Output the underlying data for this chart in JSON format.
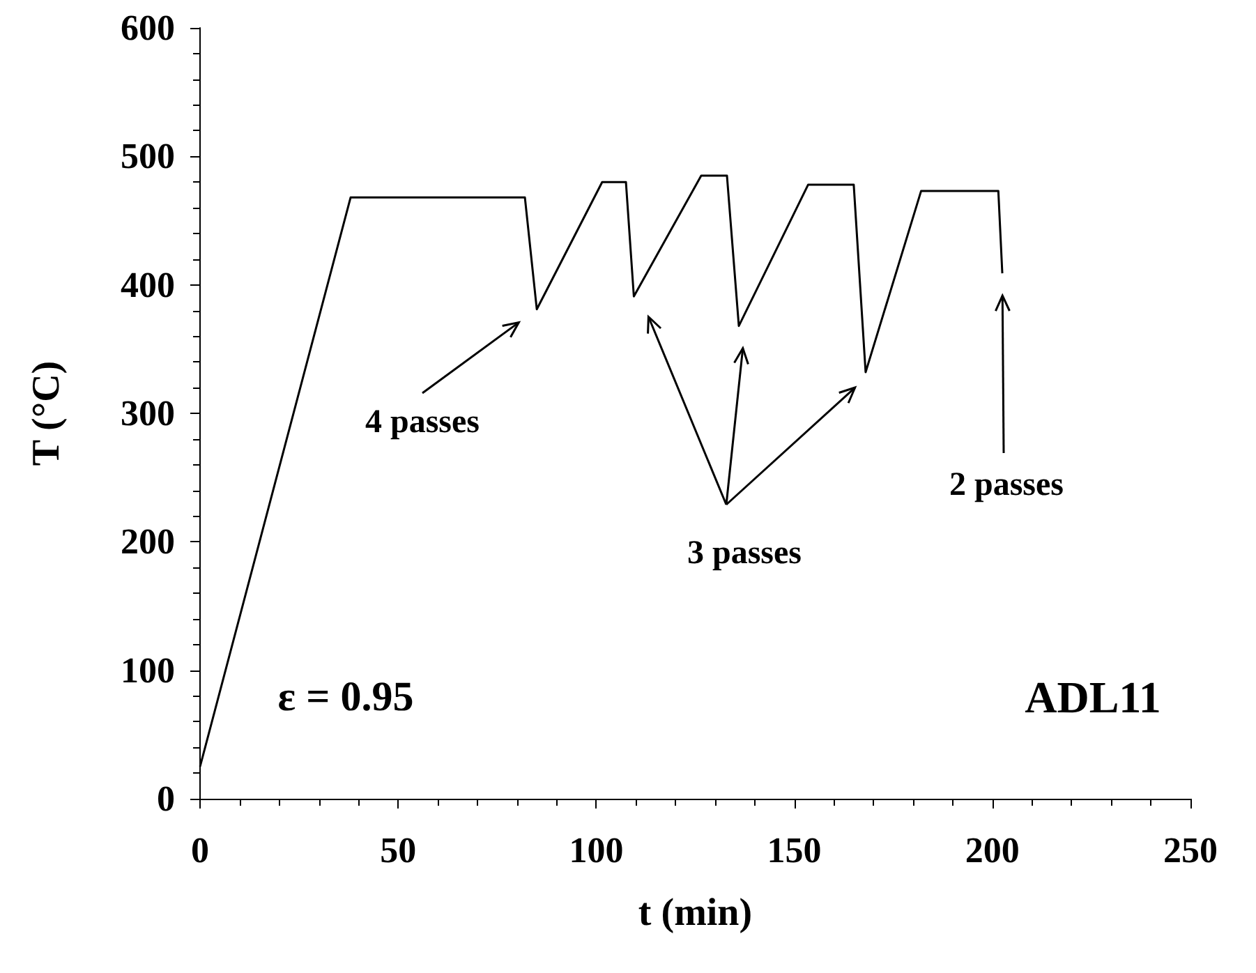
{
  "chart_data": {
    "type": "line",
    "xlabel": "t (min)",
    "ylabel": "T (°C)",
    "x": [
      0,
      38,
      82,
      85,
      101.5,
      107.5,
      109.5,
      126.5,
      133,
      136,
      153.5,
      165,
      168,
      182,
      201.5,
      202.5
    ],
    "series": [
      {
        "color": "#000000",
        "values": [
          25,
          468,
          468,
          381,
          480,
          480,
          391,
          485,
          485,
          368,
          478,
          478,
          332,
          473,
          473,
          409
        ]
      }
    ],
    "xlim": [
      0,
      250
    ],
    "xticks": [
      0,
      50,
      100,
      150,
      200,
      250
    ],
    "ylim": [
      0,
      600
    ],
    "yticks": [
      0,
      100,
      200,
      300,
      400,
      500,
      600
    ],
    "grid": false,
    "marker": "none",
    "line_style": "solid",
    "annotations": [
      "4 passes",
      "3 passes",
      "2 passes",
      "ε = 0.95",
      "ADL11"
    ]
  }
}
